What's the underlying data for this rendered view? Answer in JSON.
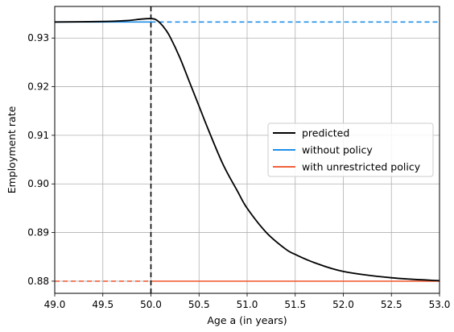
{
  "chart_data": {
    "type": "line",
    "xlabel": "Age a (in years)",
    "ylabel": "Employment rate",
    "xlim": [
      49.0,
      53.0
    ],
    "ylim": [
      0.8775,
      0.9365
    ],
    "xticks": [
      "49.0",
      "49.5",
      "50.0",
      "50.5",
      "51.0",
      "51.5",
      "52.0",
      "52.5",
      "53.0"
    ],
    "xtick_values": [
      49.0,
      49.5,
      50.0,
      50.5,
      51.0,
      51.5,
      52.0,
      52.5,
      53.0
    ],
    "yticks": [
      "0.88",
      "0.89",
      "0.90",
      "0.91",
      "0.92",
      "0.93"
    ],
    "ytick_values": [
      0.88,
      0.89,
      0.9,
      0.91,
      0.92,
      0.93
    ],
    "grid": true,
    "legend_position": "center-right",
    "policy_age": 50.0,
    "series": [
      {
        "name": "predicted",
        "color": "#000000",
        "style": "solid",
        "x": [
          49.0,
          49.5,
          49.75,
          49.9,
          50.0,
          50.05,
          50.1,
          50.15,
          50.2,
          50.3,
          50.4,
          50.5,
          50.6,
          50.75,
          50.9,
          51.0,
          51.2,
          51.4,
          51.5,
          51.7,
          52.0,
          52.5,
          53.0
        ],
        "y": [
          0.9333,
          0.9334,
          0.9336,
          0.9339,
          0.934,
          0.9338,
          0.933,
          0.9318,
          0.9302,
          0.926,
          0.921,
          0.916,
          0.911,
          0.904,
          0.8985,
          0.895,
          0.89,
          0.8866,
          0.8855,
          0.8838,
          0.882,
          0.8807,
          0.8801
        ]
      },
      {
        "name": "without policy",
        "color": "#1f8fe8",
        "value": 0.9333,
        "solid_range": [
          49.0,
          50.0
        ],
        "dashed_range": [
          50.0,
          53.0
        ]
      },
      {
        "name": "with unrestricted policy",
        "color": "#f0603a",
        "value": 0.88,
        "dashed_range": [
          49.0,
          50.0
        ],
        "solid_range": [
          50.0,
          53.0
        ]
      }
    ]
  }
}
